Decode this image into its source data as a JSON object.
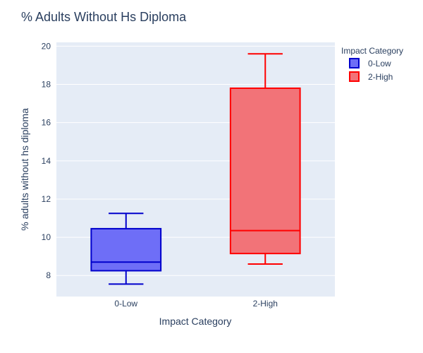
{
  "chart_data": {
    "type": "box",
    "title": "% Adults Without Hs Diploma",
    "xlabel": "Impact Category",
    "ylabel": "% adults without hs diploma",
    "ylim": [
      6.9,
      20.2
    ],
    "yticks": [
      8,
      10,
      12,
      14,
      16,
      18,
      20
    ],
    "grid": true,
    "legend": {
      "title": "Impact Category",
      "position": "top-right"
    },
    "categories": [
      "0-Low",
      "2-High"
    ],
    "series": [
      {
        "name": "0-Low",
        "color": "#0000cc",
        "fill": "#6e6ef7",
        "min": 7.55,
        "q1": 8.25,
        "median": 8.7,
        "q3": 10.45,
        "max": 11.25
      },
      {
        "name": "2-High",
        "color": "#ff0000",
        "fill": "#f27378",
        "min": 8.6,
        "q1": 9.15,
        "median": 10.35,
        "q3": 17.8,
        "max": 19.6
      }
    ]
  },
  "colors": {
    "plot_background": "#e5ecf6",
    "grid": "#ffffff",
    "text": "#2a3f5f"
  }
}
